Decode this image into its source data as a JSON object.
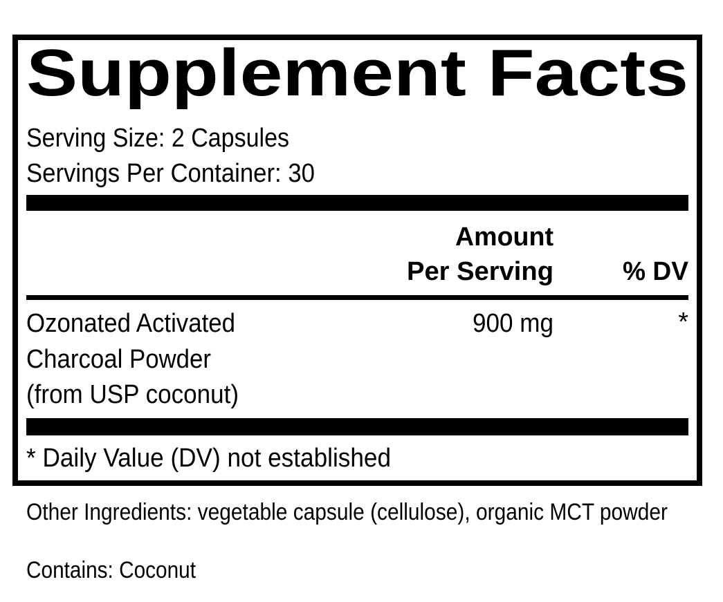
{
  "title": "Supplement Facts",
  "serving_size": "Serving Size: 2 Capsules",
  "servings_per_container": "Servings Per Container: 30",
  "table": {
    "header": {
      "amount": [
        "Amount",
        "Per Serving"
      ],
      "dv": "% DV"
    },
    "rows": [
      {
        "name": [
          "Ozonated Activated",
          "Charcoal Powder",
          "(from USP coconut)"
        ],
        "amount": "900 mg",
        "dv": "*"
      }
    ]
  },
  "footnote": "* Daily Value (DV) not established",
  "other_ingredients": "Other Ingredients: vegetable capsule (cellulose), organic MCT powder",
  "contains": "Contains: Coconut"
}
